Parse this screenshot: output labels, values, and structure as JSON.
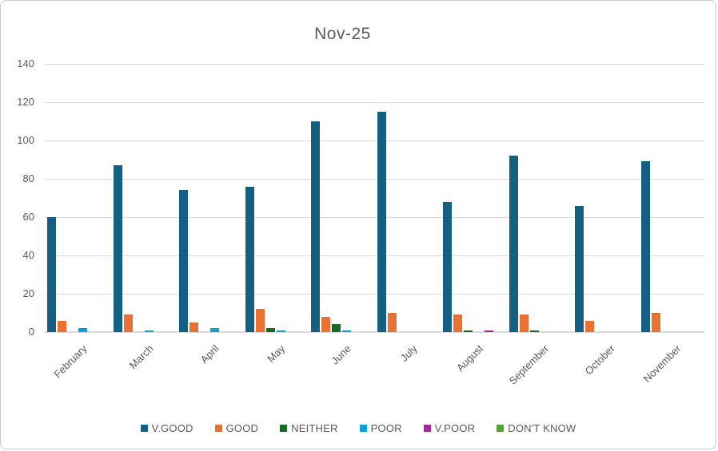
{
  "title": "Nov-25",
  "y_axis": {
    "tick_labels": [
      "0",
      "20",
      "40",
      "60",
      "80",
      "100",
      "120",
      "140"
    ]
  },
  "chart_data": {
    "type": "bar",
    "title": "Nov-25",
    "categories": [
      "February",
      "March",
      "April",
      "May",
      "June",
      "July",
      "August",
      "September",
      "October",
      "November"
    ],
    "series": [
      {
        "name": "V.GOOD",
        "color": "#156082",
        "values": [
          60,
          87,
          74,
          76,
          110,
          115,
          68,
          92,
          66,
          89
        ]
      },
      {
        "name": "GOOD",
        "color": "#E97132",
        "values": [
          6,
          9,
          5,
          12,
          8,
          10,
          9,
          9,
          6,
          10
        ]
      },
      {
        "name": "NEITHER",
        "color": "#196B24",
        "values": [
          0,
          0,
          0,
          2,
          4,
          0,
          1,
          1,
          0,
          0
        ]
      },
      {
        "name": "POOR",
        "color": "#0F9ED5",
        "values": [
          2,
          1,
          2,
          1,
          1,
          0,
          0,
          0,
          0,
          0
        ]
      },
      {
        "name": "V.POOR",
        "color": "#A02B93",
        "values": [
          0,
          0,
          0,
          0,
          0,
          0,
          1,
          0,
          0,
          0
        ]
      },
      {
        "name": "DON'T KNOW",
        "color": "#4EA72E",
        "values": [
          0,
          0,
          0,
          0,
          0,
          0,
          0,
          0,
          0,
          0
        ]
      }
    ],
    "ylim": [
      0,
      140
    ],
    "y_step": 20,
    "grid": true,
    "legend_position": "bottom",
    "colors": {
      "text": "#595959",
      "gridline": "#D9D9D9"
    }
  }
}
